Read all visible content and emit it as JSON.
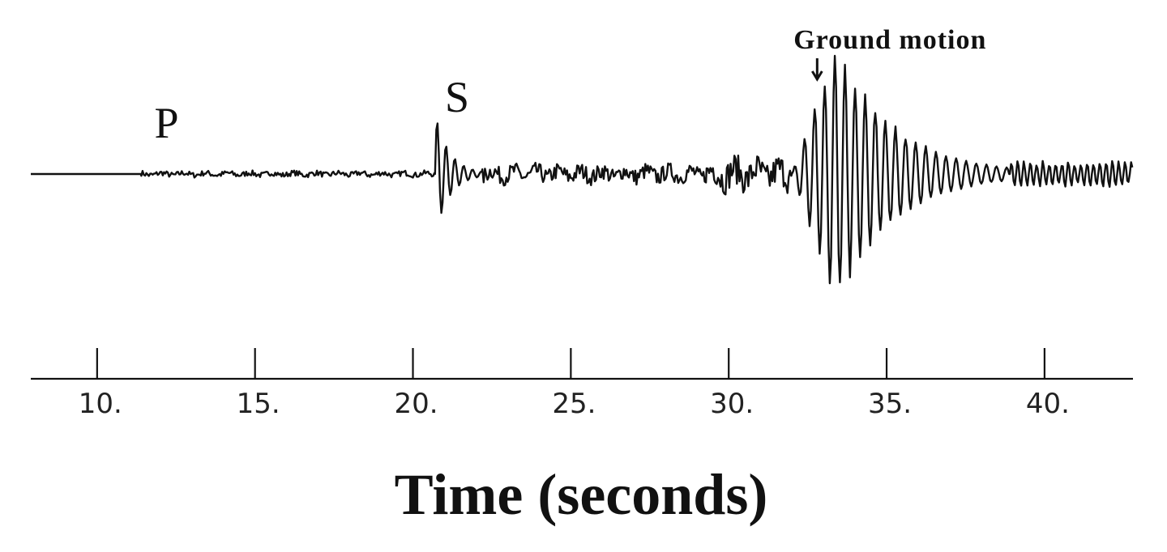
{
  "chart_data": {
    "type": "line",
    "title": "",
    "xlabel": "Time (seconds)",
    "ylabel": "",
    "xlim": [
      7.9,
      42.8
    ],
    "ylim": [
      -1.0,
      1.0
    ],
    "grid": false,
    "x_ticks": [
      10,
      15,
      20,
      25,
      30,
      35,
      40
    ],
    "x_tick_labels": [
      "10.",
      "15.",
      "20.",
      "25.",
      "30.",
      "35.",
      "40."
    ],
    "phase_labels": [
      {
        "id": "p",
        "text": "P",
        "x": 12.2
      },
      {
        "id": "s",
        "text": "S",
        "x": 21.4
      }
    ],
    "annotation": {
      "text": "Ground motion",
      "x": 32.8
    },
    "series": [
      {
        "segments": [
          {
            "t0": 7.9,
            "t1": 11.4,
            "kind": "flat"
          },
          {
            "t0": 11.4,
            "t1": 20.7,
            "kind": "noise",
            "amp": 0.02
          },
          {
            "t0": 20.7,
            "t1": 22.2,
            "kind": "burst",
            "amp": 0.45,
            "period": 0.28,
            "decay": 2.2
          },
          {
            "t0": 22.2,
            "t1": 29.3,
            "kind": "noise",
            "amp": 0.06
          },
          {
            "t0": 29.3,
            "t1": 32.0,
            "kind": "noise",
            "amp": 0.11
          },
          {
            "t0": 32.0,
            "t1": 38.9,
            "kind": "wave",
            "peak_t": 33.4,
            "amp": 0.98,
            "period": 0.32,
            "decay": 0.55
          },
          {
            "t0": 38.9,
            "t1": 42.8,
            "kind": "tail",
            "amp": 0.1,
            "period": 0.2
          }
        ]
      }
    ]
  }
}
